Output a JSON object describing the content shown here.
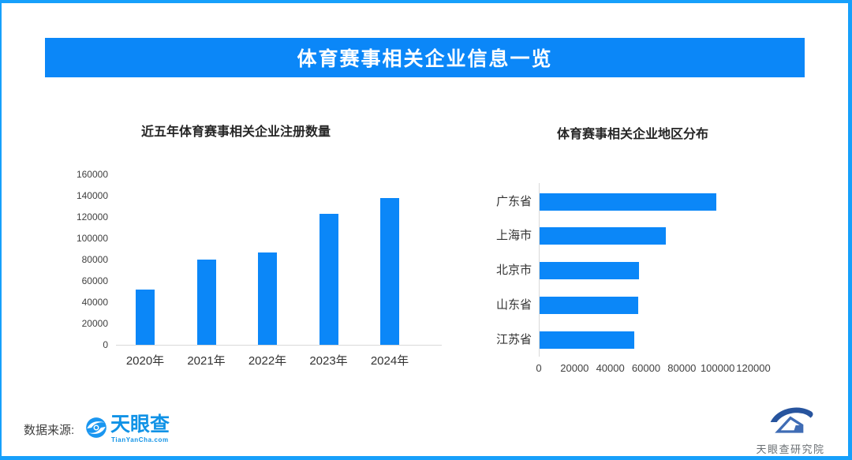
{
  "banner": {
    "title": "体育赛事相关企业信息一览"
  },
  "chart_data": [
    {
      "type": "bar",
      "orientation": "vertical",
      "title": "近五年体育赛事相关企业注册数量",
      "categories": [
        "2020年",
        "2021年",
        "2022年",
        "2023年",
        "2024年"
      ],
      "values": [
        52000,
        80000,
        86500,
        123000,
        137500
      ],
      "xlabel": "",
      "ylabel": "",
      "ylim": [
        0,
        160000
      ],
      "ytick_labels": [
        "160000",
        "140000",
        "120000",
        "100000",
        "80000",
        "60000",
        "40000",
        "20000",
        "0"
      ],
      "grid": false,
      "legend": "none",
      "bar_color": "#0b87f8"
    },
    {
      "type": "bar",
      "orientation": "horizontal",
      "title": "体育赛事相关企业地区分布",
      "categories": [
        "广东省",
        "上海市",
        "北京市",
        "山东省",
        "江苏省"
      ],
      "values": [
        99000,
        70500,
        55500,
        55000,
        53000
      ],
      "xlabel": "",
      "ylabel": "",
      "xlim": [
        0,
        120000
      ],
      "xtick_labels": [
        "0",
        "20000",
        "40000",
        "60000",
        "80000",
        "100000",
        "120000"
      ],
      "grid": false,
      "legend": "none",
      "bar_color": "#0b87f8"
    }
  ],
  "footer": {
    "source_label": "数据来源:",
    "tianyancha_logo_text": "天眼查",
    "tianyancha_logo_sub": "TianYanCha.com",
    "research_institute": "天眼查研究院"
  },
  "colors": {
    "accent_blue": "#0b87f8",
    "border_blue": "#17a0fb",
    "logo_blue": "#1092e6",
    "axis_gray": "#d9d9d9"
  }
}
